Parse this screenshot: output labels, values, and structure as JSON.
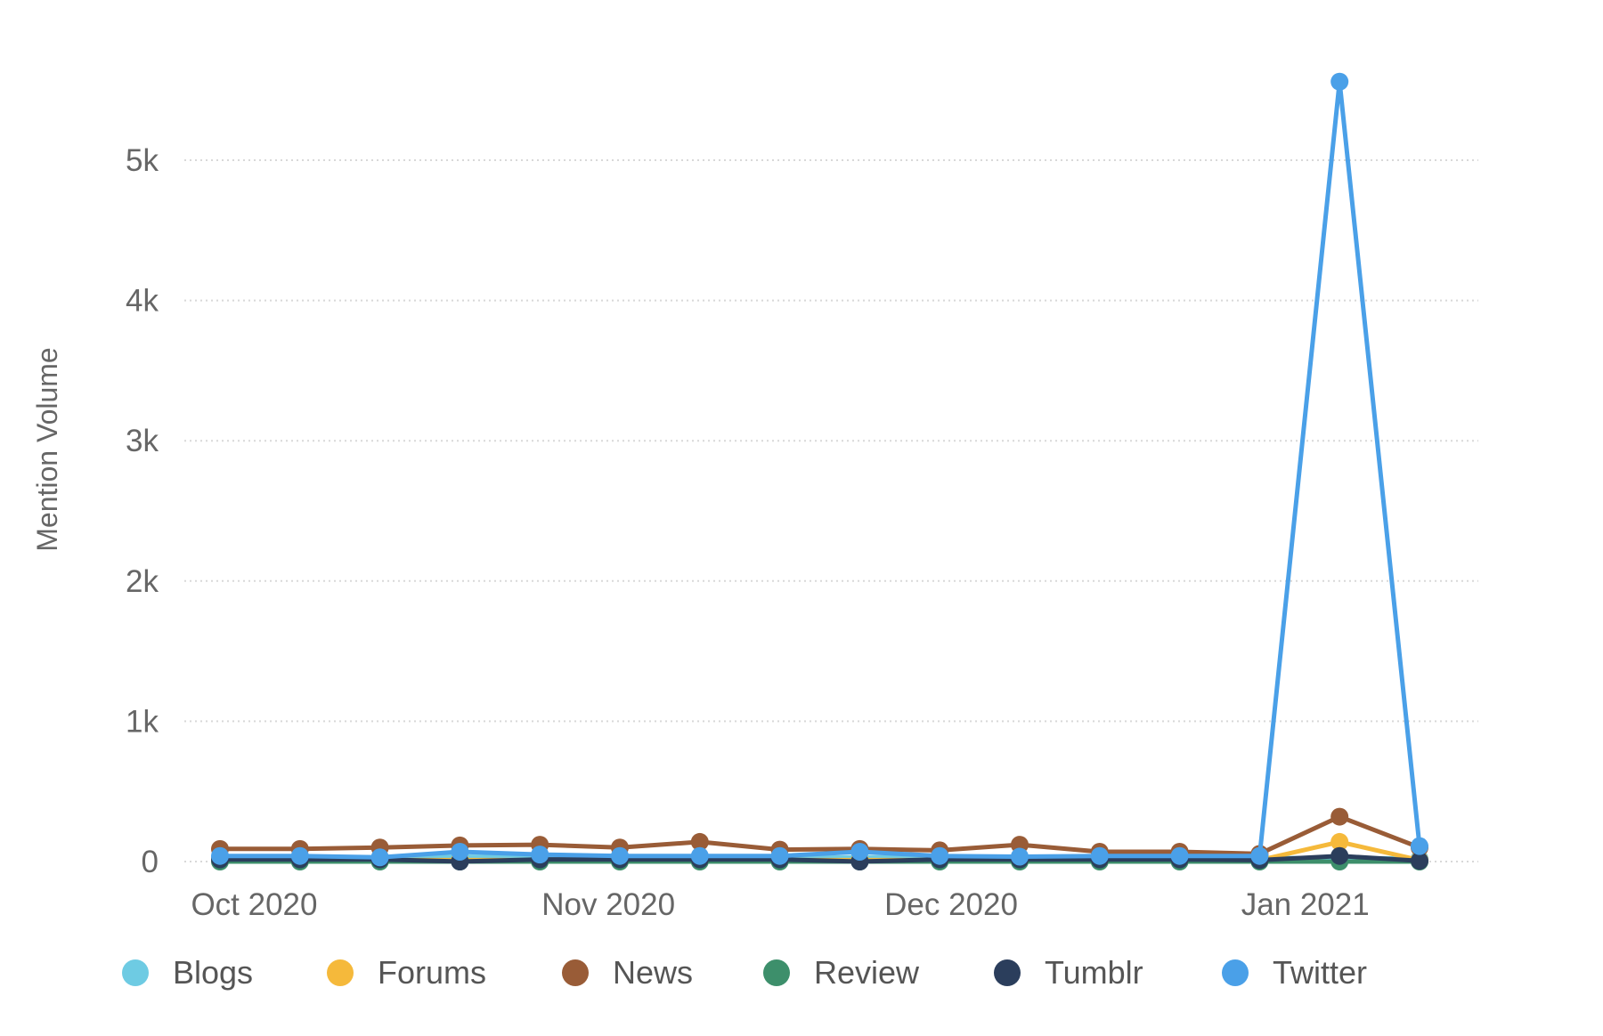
{
  "chart_data": {
    "type": "line",
    "title": "",
    "xlabel": "",
    "ylabel": "Mention Volume",
    "ylim": [
      0,
      5700
    ],
    "y_ticks": [
      0,
      1000,
      2000,
      3000,
      4000,
      5000
    ],
    "y_tick_labels": [
      "0",
      "1k",
      "2k",
      "3k",
      "4k",
      "5k"
    ],
    "x_ticks": [
      "2020-10-01",
      "2020-11-01",
      "2020-12-01",
      "2021-01-01"
    ],
    "x_tick_labels": [
      "Oct 2020",
      "Nov 2020",
      "Dec 2020",
      "Jan 2021"
    ],
    "x": [
      "2020-09-28",
      "2020-10-05",
      "2020-10-12",
      "2020-10-19",
      "2020-10-26",
      "2020-11-02",
      "2020-11-09",
      "2020-11-16",
      "2020-11-23",
      "2020-11-30",
      "2020-12-07",
      "2020-12-14",
      "2020-12-21",
      "2020-12-28",
      "2021-01-04",
      "2021-01-11"
    ],
    "grid": true,
    "legend_position": "bottom",
    "series": [
      {
        "name": "Blogs",
        "color": "#6ecbe3",
        "values": [
          30,
          30,
          25,
          35,
          30,
          30,
          30,
          25,
          30,
          30,
          25,
          30,
          30,
          25,
          25,
          20
        ]
      },
      {
        "name": "Forums",
        "color": "#f5b93b",
        "values": [
          10,
          10,
          10,
          10,
          10,
          10,
          10,
          10,
          10,
          10,
          10,
          10,
          10,
          10,
          140,
          10
        ]
      },
      {
        "name": "News",
        "color": "#995c37",
        "values": [
          90,
          90,
          100,
          115,
          120,
          100,
          140,
          85,
          90,
          80,
          120,
          70,
          70,
          55,
          320,
          100
        ]
      },
      {
        "name": "Review",
        "color": "#3d8f6b",
        "values": [
          0,
          0,
          0,
          0,
          0,
          0,
          0,
          0,
          0,
          0,
          0,
          0,
          0,
          0,
          0,
          0
        ]
      },
      {
        "name": "Tumblr",
        "color": "#2b3e5c",
        "values": [
          15,
          15,
          15,
          0,
          15,
          15,
          15,
          15,
          0,
          15,
          15,
          15,
          15,
          10,
          40,
          5
        ]
      },
      {
        "name": "Twitter",
        "color": "#4aa0e8",
        "values": [
          40,
          40,
          30,
          70,
          50,
          40,
          40,
          40,
          70,
          40,
          35,
          40,
          40,
          40,
          5560,
          110
        ]
      }
    ]
  }
}
